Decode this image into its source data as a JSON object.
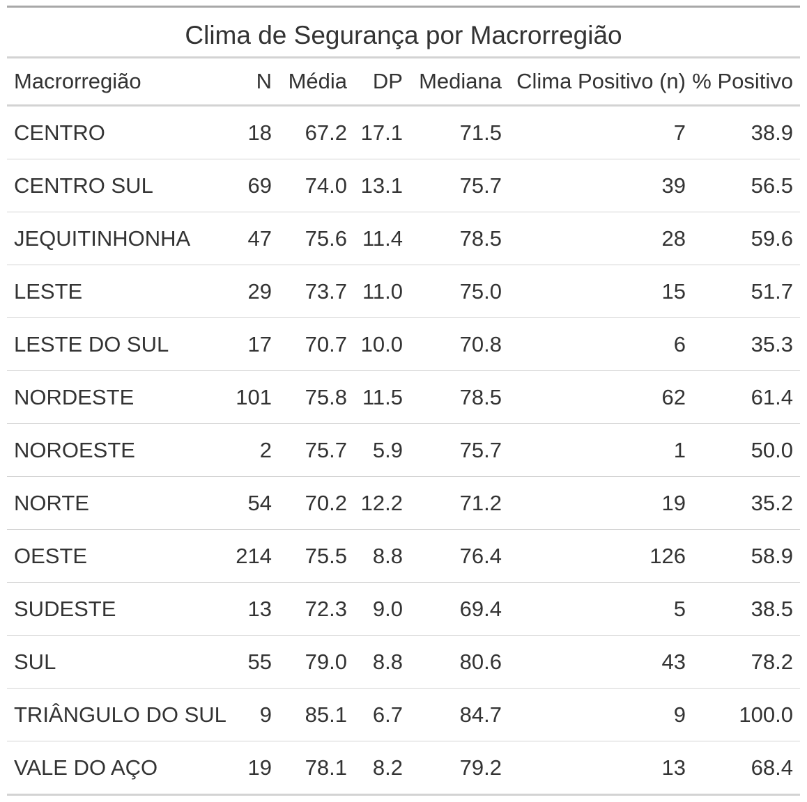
{
  "table": {
    "title": "Clima de Segurança por Macrorregião",
    "headers": [
      "Macrorregião",
      "N",
      "Média",
      "DP",
      "Mediana",
      "Clima Positivo (n)",
      "% Positivo"
    ],
    "rows": [
      [
        "CENTRO",
        "18",
        "67.2",
        "17.1",
        "71.5",
        "7",
        "38.9"
      ],
      [
        "CENTRO SUL",
        "69",
        "74.0",
        "13.1",
        "75.7",
        "39",
        "56.5"
      ],
      [
        "JEQUITINHONHA",
        "47",
        "75.6",
        "11.4",
        "78.5",
        "28",
        "59.6"
      ],
      [
        "LESTE",
        "29",
        "73.7",
        "11.0",
        "75.0",
        "15",
        "51.7"
      ],
      [
        "LESTE DO SUL",
        "17",
        "70.7",
        "10.0",
        "70.8",
        "6",
        "35.3"
      ],
      [
        "NORDESTE",
        "101",
        "75.8",
        "11.5",
        "78.5",
        "62",
        "61.4"
      ],
      [
        "NOROESTE",
        "2",
        "75.7",
        "5.9",
        "75.7",
        "1",
        "50.0"
      ],
      [
        "NORTE",
        "54",
        "70.2",
        "12.2",
        "71.2",
        "19",
        "35.2"
      ],
      [
        "OESTE",
        "214",
        "75.5",
        "8.8",
        "76.4",
        "126",
        "58.9"
      ],
      [
        "SUDESTE",
        "13",
        "72.3",
        "9.0",
        "69.4",
        "5",
        "38.5"
      ],
      [
        "SUL",
        "55",
        "79.0",
        "8.8",
        "80.6",
        "43",
        "78.2"
      ],
      [
        "TRIÂNGULO DO SUL",
        "9",
        "85.1",
        "6.7",
        "84.7",
        "9",
        "100.0"
      ],
      [
        "VALE DO AÇO",
        "19",
        "78.1",
        "8.2",
        "79.2",
        "13",
        "68.4"
      ]
    ]
  }
}
